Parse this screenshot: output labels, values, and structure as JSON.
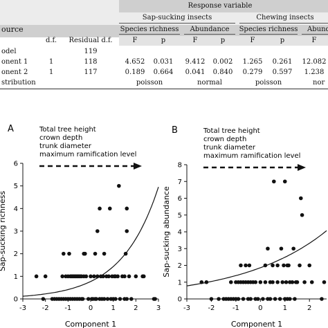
{
  "table": {
    "header_top": "Response variable",
    "group_sap": "Sap-sucking insects",
    "group_chew": "Chewing insects",
    "sub_headers": [
      "Species richness",
      "Abundance",
      "Species richness",
      "Abund"
    ],
    "col_source": "ource",
    "col_df": "d.f.",
    "col_resid": "Residual d.f.",
    "stat_headers": [
      "F",
      "p",
      "F",
      "p",
      "F",
      "p",
      "F"
    ],
    "rows": [
      {
        "label": "odel",
        "df": "",
        "resid": "119",
        "values": [
          "",
          "",
          "",
          "",
          "",
          "",
          ""
        ]
      },
      {
        "label": "onent 1",
        "df": "1",
        "resid": "118",
        "values": [
          "4.652",
          "0.031",
          "9.412",
          "0.002",
          "1.265",
          "0.261",
          "12.082"
        ]
      },
      {
        "label": "onent 2",
        "df": "1",
        "resid": "117",
        "values": [
          "0.189",
          "0.664",
          "0.041",
          "0.840",
          "0.279",
          "0.597",
          "1.238"
        ]
      },
      {
        "label": "stribution",
        "df": "",
        "resid": "",
        "values": [
          "poisson",
          "",
          "normal",
          "",
          "poisson",
          "",
          "nor"
        ]
      }
    ],
    "colors": {
      "band_dark": "#cfcfcf",
      "band_light": "#ececec"
    }
  },
  "chart_data": [
    {
      "type": "scatter",
      "panel_label": "A",
      "annotation_lines": [
        "Total tree height",
        "crown depth",
        "trunk diameter",
        "maximum ramification level"
      ],
      "xlabel": "Component 1",
      "ylabel": "Sap-sucking richness",
      "xlim": [
        -3,
        3
      ],
      "ylim": [
        0,
        6
      ],
      "xticks": [
        "-3",
        "-2",
        "-1",
        "0",
        "1",
        "2",
        "3"
      ],
      "yticks": [
        "0",
        "1",
        "2",
        "3",
        "4",
        "5",
        "6"
      ],
      "points": [
        [
          -2.4,
          1
        ],
        [
          -2.1,
          0
        ],
        [
          -2.0,
          1
        ],
        [
          -1.7,
          0
        ],
        [
          -1.6,
          0
        ],
        [
          -1.5,
          0
        ],
        [
          -1.4,
          0
        ],
        [
          -1.3,
          0
        ],
        [
          -1.25,
          1
        ],
        [
          -1.2,
          0
        ],
        [
          -1.2,
          2
        ],
        [
          -1.1,
          0
        ],
        [
          -1.1,
          1
        ],
        [
          -1.0,
          0
        ],
        [
          -1.0,
          1
        ],
        [
          -0.95,
          2
        ],
        [
          -0.9,
          0
        ],
        [
          -0.9,
          1
        ],
        [
          -0.85,
          1
        ],
        [
          -0.8,
          0
        ],
        [
          -0.8,
          1
        ],
        [
          -0.75,
          1
        ],
        [
          -0.7,
          0
        ],
        [
          -0.7,
          1
        ],
        [
          -0.65,
          1
        ],
        [
          -0.6,
          0
        ],
        [
          -0.6,
          1
        ],
        [
          -0.55,
          1
        ],
        [
          -0.5,
          0
        ],
        [
          -0.5,
          1
        ],
        [
          -0.45,
          1
        ],
        [
          -0.4,
          0
        ],
        [
          -0.4,
          1
        ],
        [
          -0.35,
          0
        ],
        [
          -0.3,
          1
        ],
        [
          -0.3,
          2
        ],
        [
          -0.25,
          2
        ],
        [
          -0.2,
          1
        ],
        [
          -0.1,
          0
        ],
        [
          0.0,
          1
        ],
        [
          0.05,
          0
        ],
        [
          0.1,
          0
        ],
        [
          0.15,
          1
        ],
        [
          0.2,
          0
        ],
        [
          0.2,
          2
        ],
        [
          0.25,
          0
        ],
        [
          0.3,
          1
        ],
        [
          0.3,
          3
        ],
        [
          0.4,
          0
        ],
        [
          0.4,
          4
        ],
        [
          0.45,
          1
        ],
        [
          0.5,
          0
        ],
        [
          0.55,
          1
        ],
        [
          0.6,
          0
        ],
        [
          0.6,
          2
        ],
        [
          0.7,
          1
        ],
        [
          0.75,
          0
        ],
        [
          0.8,
          1
        ],
        [
          0.85,
          4
        ],
        [
          0.9,
          0
        ],
        [
          0.95,
          1
        ],
        [
          1.0,
          0
        ],
        [
          1.05,
          1
        ],
        [
          1.1,
          0
        ],
        [
          1.1,
          1
        ],
        [
          1.2,
          1
        ],
        [
          1.25,
          5
        ],
        [
          1.3,
          0
        ],
        [
          1.4,
          1
        ],
        [
          1.5,
          0
        ],
        [
          1.5,
          1
        ],
        [
          1.55,
          2
        ],
        [
          1.6,
          0
        ],
        [
          1.6,
          4
        ],
        [
          1.6,
          3
        ],
        [
          1.7,
          1
        ],
        [
          1.8,
          0
        ],
        [
          2.0,
          1
        ],
        [
          2.3,
          1
        ],
        [
          2.35,
          1
        ],
        [
          2.8,
          0
        ],
        [
          2.85,
          0
        ]
      ],
      "fit_curve": {
        "intercept": -0.26,
        "slope": 0.62
      }
    },
    {
      "type": "scatter",
      "panel_label": "B",
      "annotation_lines": [
        "Total tree height",
        "crown depth",
        "trunk diameter",
        "maximum ramification level"
      ],
      "xlabel": "Component 1",
      "ylabel": "Sap-sucking abundance",
      "xlim": [
        -3,
        2.7
      ],
      "ylim": [
        0,
        8
      ],
      "xticks": [
        "-3",
        "-2",
        "-1",
        "0",
        "1",
        "2"
      ],
      "yticks": [
        "0",
        "1",
        "2",
        "3",
        "4",
        "5",
        "6",
        "7",
        "8"
      ],
      "points": [
        [
          -2.4,
          1
        ],
        [
          -2.2,
          1
        ],
        [
          -2.0,
          0
        ],
        [
          -1.7,
          0
        ],
        [
          -1.5,
          0
        ],
        [
          -1.4,
          0
        ],
        [
          -1.3,
          0
        ],
        [
          -1.2,
          0
        ],
        [
          -1.2,
          1
        ],
        [
          -1.1,
          0
        ],
        [
          -1.0,
          1
        ],
        [
          -1.0,
          0
        ],
        [
          -0.9,
          0
        ],
        [
          -0.9,
          1
        ],
        [
          -0.8,
          1
        ],
        [
          -0.8,
          2
        ],
        [
          -0.7,
          0
        ],
        [
          -0.7,
          1
        ],
        [
          -0.6,
          1
        ],
        [
          -0.6,
          2
        ],
        [
          -0.5,
          0
        ],
        [
          -0.5,
          1
        ],
        [
          -0.45,
          2
        ],
        [
          -0.4,
          0
        ],
        [
          -0.4,
          1
        ],
        [
          -0.3,
          1
        ],
        [
          -0.2,
          0
        ],
        [
          -0.2,
          1
        ],
        [
          -0.1,
          0
        ],
        [
          0.0,
          1
        ],
        [
          0.1,
          0
        ],
        [
          0.2,
          1
        ],
        [
          0.2,
          2
        ],
        [
          0.3,
          0
        ],
        [
          0.3,
          3
        ],
        [
          0.4,
          0
        ],
        [
          0.4,
          1
        ],
        [
          0.5,
          1
        ],
        [
          0.5,
          2
        ],
        [
          0.55,
          7
        ],
        [
          0.6,
          0
        ],
        [
          0.7,
          1
        ],
        [
          0.7,
          2
        ],
        [
          0.8,
          0
        ],
        [
          0.85,
          3
        ],
        [
          0.9,
          1
        ],
        [
          0.95,
          2
        ],
        [
          1.0,
          0
        ],
        [
          1.0,
          7
        ],
        [
          1.05,
          1
        ],
        [
          1.1,
          0
        ],
        [
          1.1,
          2
        ],
        [
          1.15,
          2
        ],
        [
          1.2,
          0
        ],
        [
          1.2,
          1
        ],
        [
          1.3,
          1
        ],
        [
          1.35,
          3
        ],
        [
          1.4,
          0
        ],
        [
          1.45,
          1
        ],
        [
          1.5,
          1
        ],
        [
          1.6,
          2
        ],
        [
          1.65,
          6
        ],
        [
          1.7,
          5
        ],
        [
          1.8,
          1
        ],
        [
          2.0,
          2
        ],
        [
          2.1,
          1
        ],
        [
          2.5,
          0
        ],
        [
          2.6,
          1
        ]
      ],
      "fit_curve": {
        "intercept": 0.62,
        "slope": 0.29
      }
    }
  ]
}
